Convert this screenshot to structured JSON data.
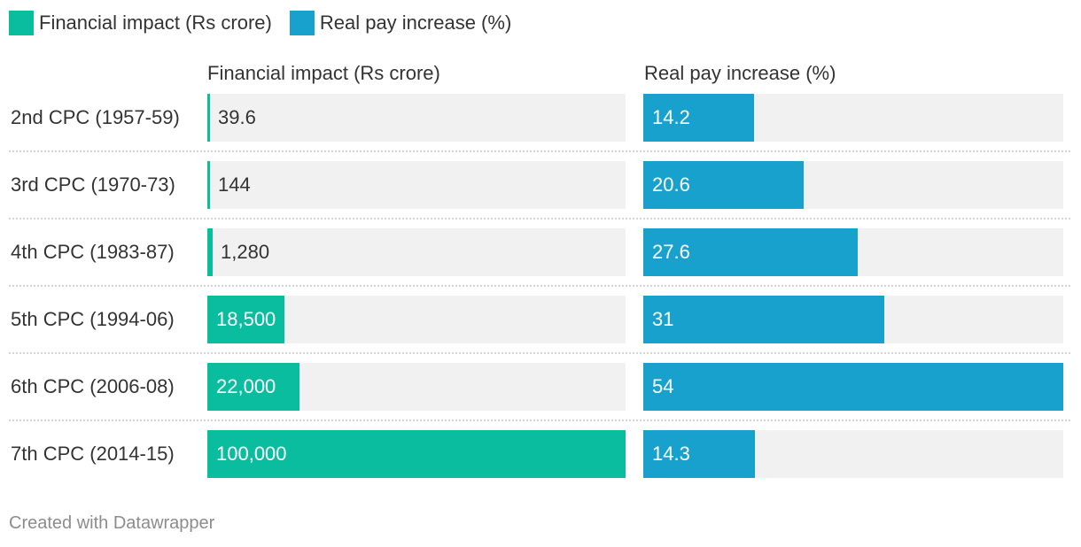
{
  "legend": [
    {
      "label": "Financial impact (Rs crore)",
      "color": "#0abd9f"
    },
    {
      "label": "Real pay increase (%)",
      "color": "#18a1cd"
    }
  ],
  "chart_data": {
    "type": "bar",
    "orientation": "horizontal",
    "categories": [
      "2nd CPC (1957-59)",
      "3rd CPC (1970-73)",
      "4th CPC (1983-87)",
      "5th CPC (1994-06)",
      "6th CPC (2006-08)",
      "7th CPC (2014-15)"
    ],
    "series": [
      {
        "name": "Financial impact (Rs crore)",
        "color": "#0abd9f",
        "values": [
          39.6,
          144,
          1280,
          18500,
          22000,
          100000
        ],
        "labels": [
          "39.6",
          "144",
          "1,280",
          "18,500",
          "22,000",
          "100,000"
        ],
        "xlim": [
          0,
          100000
        ]
      },
      {
        "name": "Real pay increase (%)",
        "color": "#18a1cd",
        "values": [
          14.2,
          20.6,
          27.6,
          31,
          54,
          14.3
        ],
        "labels": [
          "14.2",
          "20.6",
          "27.6",
          "31",
          "54",
          "14.3"
        ],
        "xlim": [
          0,
          54
        ]
      }
    ],
    "column_headers": [
      "Financial impact (Rs crore)",
      "Real pay increase (%)"
    ]
  },
  "footer": "Created with Datawrapper"
}
